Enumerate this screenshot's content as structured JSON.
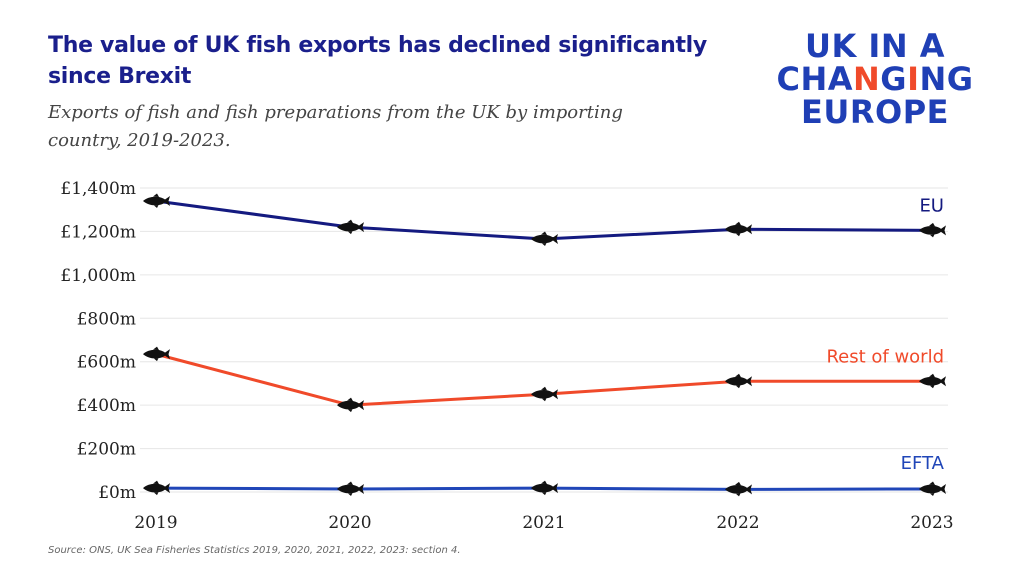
{
  "header": {
    "title": "The value of UK fish exports has declined significantly since Brexit",
    "subtitle": "Exports of fish and fish preparations from the UK by importing country, 2019-2023."
  },
  "logo": {
    "line1": "UK IN A",
    "line2_a": "CHA",
    "line2_b": "N",
    "line2_c": "G",
    "line2_d": "I",
    "line2_e": "NG",
    "line3": "EUROPE",
    "accent_color": "#f04a2a",
    "color": "#1f3fb5"
  },
  "footer": {
    "source": "Source: ONS, UK Sea Fisheries Statistics 2019, 2020, 2021, 2022, 2023: section 4."
  },
  "chart_data": {
    "type": "line",
    "x": [
      "2019",
      "2020",
      "2021",
      "2022",
      "2023"
    ],
    "yticks": [
      "£0m",
      "£200m",
      "£400m",
      "£600m",
      "£800m",
      "£1,000m",
      "£1,200m",
      "£1,400m"
    ],
    "ylim": [
      0,
      1400
    ],
    "grid": true,
    "marker_icon": "fish-icon",
    "series": [
      {
        "name": "EU",
        "values": [
          1340,
          1220,
          1165,
          1210,
          1205
        ],
        "color": "#141a80"
      },
      {
        "name": "Rest of world",
        "values": [
          635,
          400,
          450,
          510,
          510
        ],
        "color": "#f04a2a"
      },
      {
        "name": "EFTA",
        "values": [
          18,
          14,
          18,
          12,
          14
        ],
        "color": "#2046b8"
      }
    ]
  }
}
